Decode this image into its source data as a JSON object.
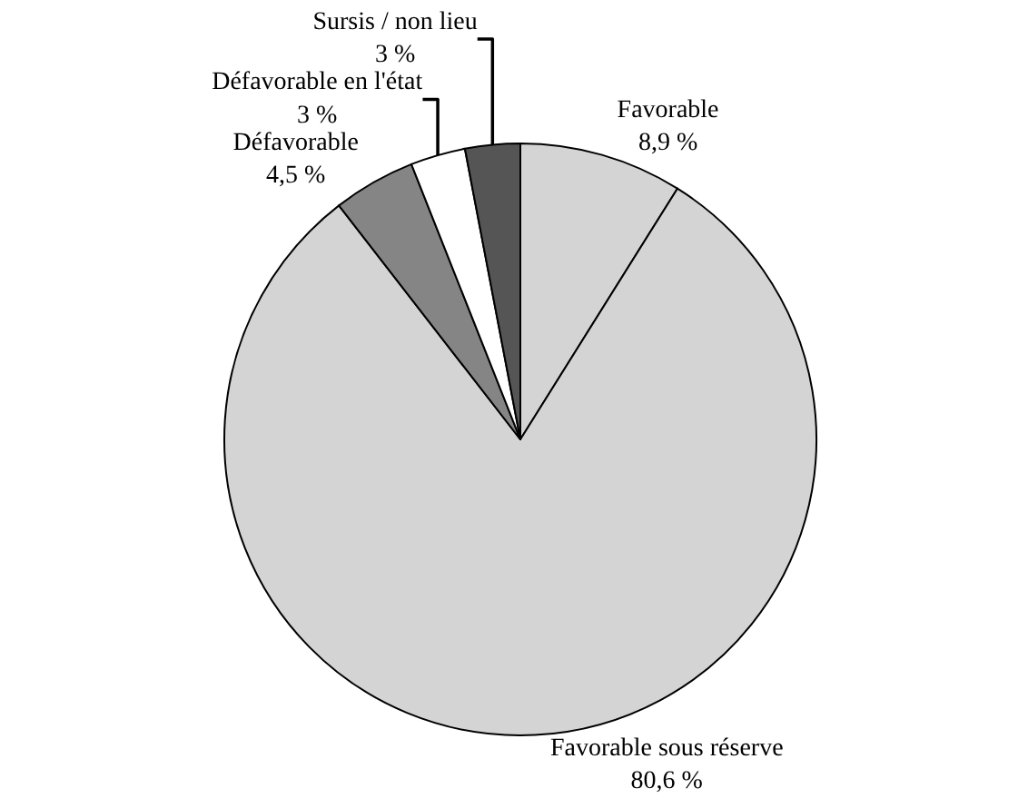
{
  "chart_data": {
    "type": "pie",
    "categories": [
      "Favorable",
      "Favorable sous réserve",
      "Défavorable",
      "Défavorable en l'état",
      "Sursis / non lieu"
    ],
    "values": [
      8.9,
      80.6,
      4.5,
      3,
      3
    ],
    "value_labels": [
      "8,9 %",
      "80,6 %",
      "4,5 %",
      "3 %",
      "3 %"
    ],
    "colors": [
      "#d4d4d4",
      "#d4d4d4",
      "#858585",
      "#ffffff",
      "#555555"
    ],
    "legend": false
  }
}
